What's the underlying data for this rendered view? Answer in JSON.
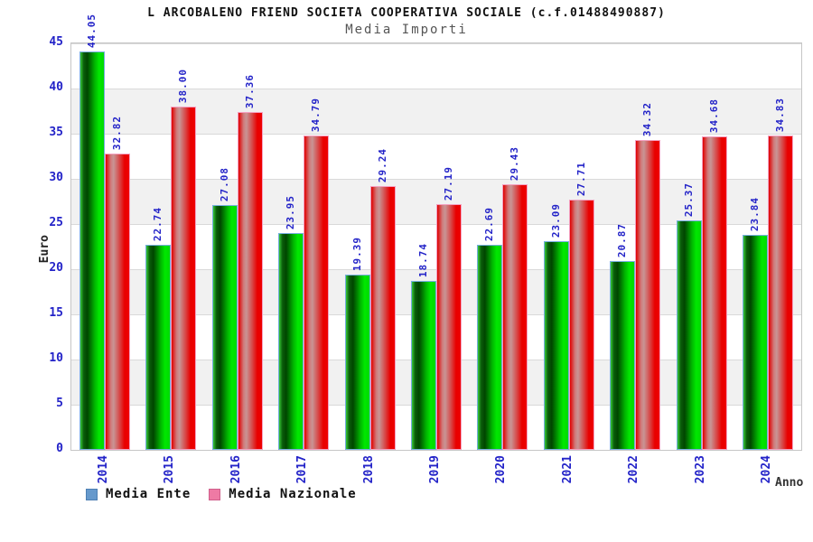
{
  "title": "L ARCOBALENO FRIEND SOCIETA COOPERATIVA SOCIALE (c.f.01488490887)",
  "subtitle": "Media Importi",
  "chart_data": {
    "type": "bar",
    "title": "L ARCOBALENO FRIEND SOCIETA COOPERATIVA SOCIALE (c.f.01488490887)",
    "subtitle": "Media Importi",
    "categories": [
      "2014",
      "2015",
      "2016",
      "2017",
      "2018",
      "2019",
      "2020",
      "2021",
      "2022",
      "2023",
      "2024"
    ],
    "series": [
      {
        "name": "Media Ente",
        "values": [
          44.05,
          22.74,
          27.08,
          23.95,
          19.39,
          18.74,
          22.69,
          23.09,
          20.87,
          25.37,
          23.84
        ]
      },
      {
        "name": "Media Nazionale",
        "values": [
          32.82,
          38.0,
          37.36,
          34.79,
          29.24,
          27.19,
          29.43,
          27.71,
          34.32,
          34.68,
          34.83
        ]
      }
    ],
    "xlabel": "Anno",
    "ylabel": "Euro",
    "ylim": [
      0,
      45
    ],
    "ytick_step": 5,
    "yticks": [
      0,
      5,
      10,
      15,
      20,
      25,
      30,
      35,
      40,
      45
    ],
    "grid": true,
    "legend_position": "bottom",
    "value_label_decimals": 2
  },
  "colors": {
    "tick_text": "#2323c8",
    "value_label_text": "#2323c8",
    "title_text": "#111111",
    "subtitle_text": "#555555",
    "band_gray": "#f1f1f1",
    "gridline": "#d9d9d9",
    "plot_border": "#c6c6c6",
    "bar_ente_main": "#00e800",
    "bar_ente_shade": "#004600",
    "bar_ente_border": "#76aede",
    "bar_naz_main": "#ee0000",
    "bar_naz_highlight": "#c89494",
    "bar_naz_border": "#f4a0c0",
    "legend_ente_swatch": "#6699cc",
    "legend_naz_swatch": "#ee7aa4"
  }
}
